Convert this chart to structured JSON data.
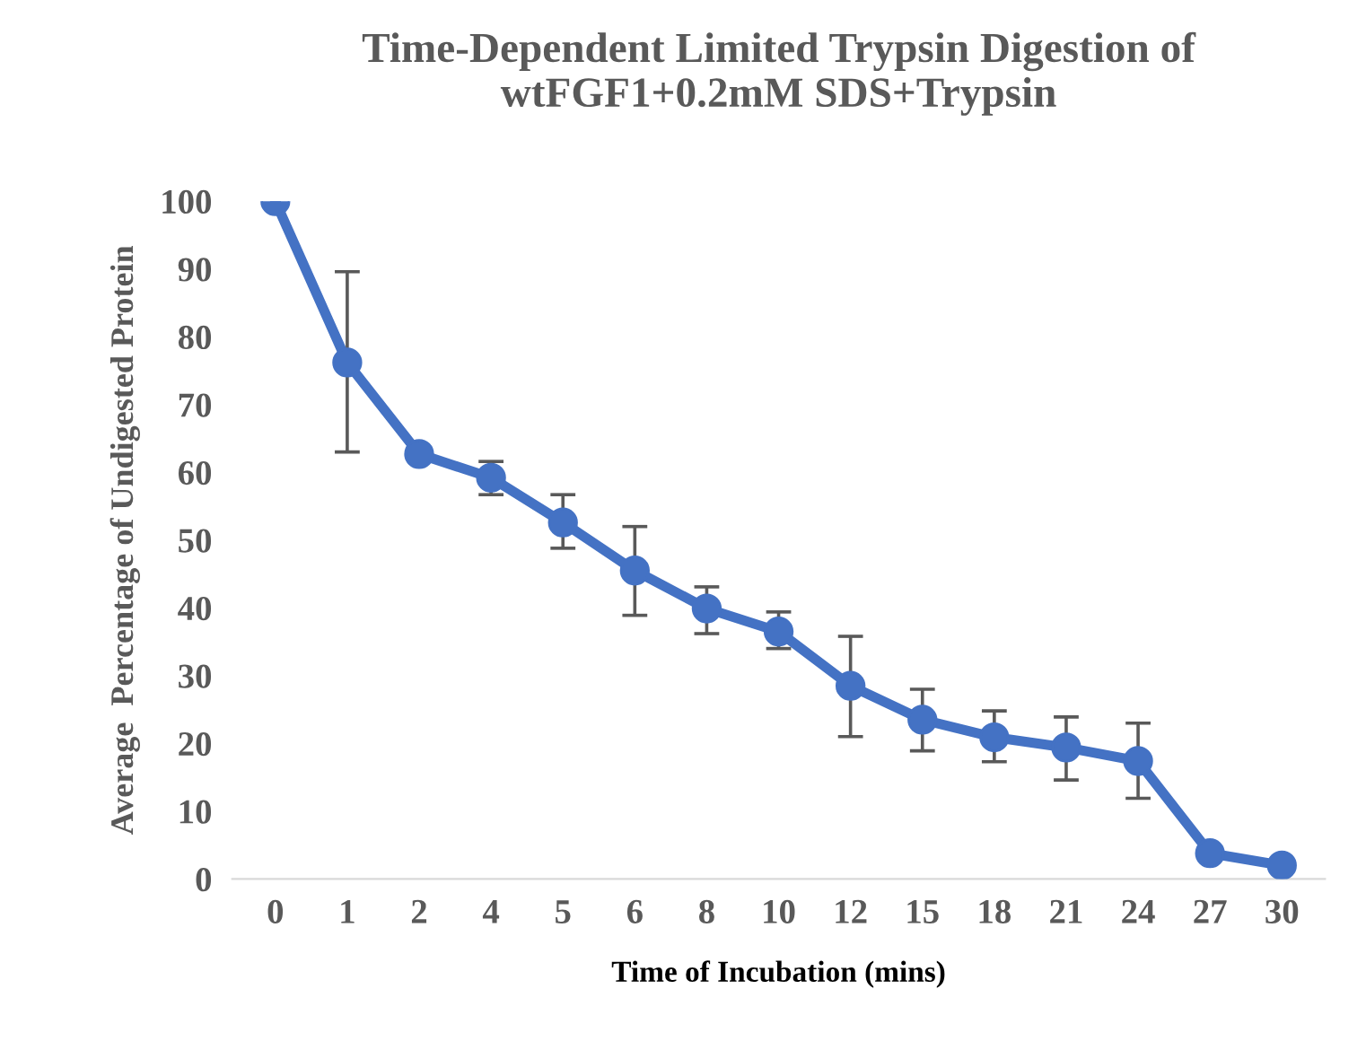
{
  "chart_data": {
    "type": "line",
    "title": "Time-Dependent Limited Trypsin Digestion of\nwtFGF1+0.2mM SDS+Trypsin",
    "xlabel": "Time of Incubation (mins)",
    "ylabel": "Average  Percentage of Undigested Protein",
    "categories": [
      "0",
      "1",
      "2",
      "4",
      "5",
      "6",
      "8",
      "10",
      "12",
      "15",
      "18",
      "21",
      "24",
      "27",
      "30"
    ],
    "series": [
      {
        "color": "#4472c4",
        "values": [
          100,
          76.2,
          62.7,
          59.2,
          52.6,
          45.5,
          39.9,
          36.5,
          28.5,
          23.5,
          20.9,
          19.4,
          17.4,
          3.8,
          2.0
        ],
        "errors": [
          null,
          [
            63.0,
            89.6
          ],
          null,
          [
            56.7,
            61.6
          ],
          [
            48.8,
            56.7
          ],
          [
            38.9,
            52.0
          ],
          [
            36.2,
            43.1
          ],
          [
            34.0,
            39.4
          ],
          [
            21.0,
            35.8
          ],
          [
            18.9,
            28.0
          ],
          [
            17.3,
            24.8
          ],
          [
            14.6,
            23.9
          ],
          [
            11.9,
            23.0
          ],
          null,
          null
        ]
      }
    ],
    "ylim": [
      0,
      100
    ],
    "yticks": [
      0,
      10,
      20,
      30,
      40,
      50,
      60,
      70,
      80,
      90,
      100
    ],
    "marker": "circle",
    "line_style": "solid",
    "grid": false,
    "legend": false
  }
}
